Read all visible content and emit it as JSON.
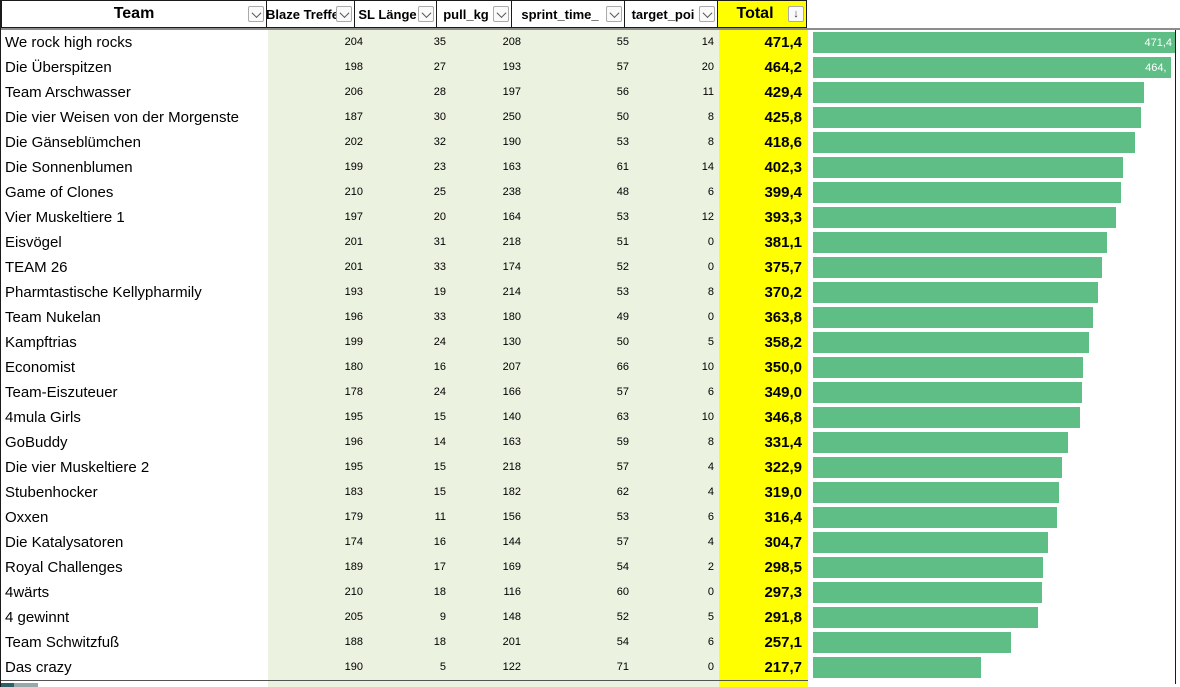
{
  "header": {
    "columns": [
      {
        "key": "team",
        "label": "Team",
        "icon": "chevron-down"
      },
      {
        "key": "blaze_treffer",
        "label": "Blaze Treffe",
        "icon": "chevron-down"
      },
      {
        "key": "sl_laenge",
        "label": "SL Länge",
        "icon": "chevron-down"
      },
      {
        "key": "pull_kg",
        "label": "pull_kg",
        "icon": "chevron-down"
      },
      {
        "key": "sprint_time",
        "label": "sprint_time_",
        "icon": "chevron-down"
      },
      {
        "key": "target_points",
        "label": "target_poi",
        "icon": "chevron-down"
      },
      {
        "key": "total",
        "label": "Total",
        "icon": "sort-descending"
      }
    ]
  },
  "rows": [
    {
      "team": "We rock high rocks",
      "blaze_treffer": 204,
      "sl_laenge": 35,
      "pull_kg": 208,
      "sprint_time": 55,
      "target_points": 14,
      "total": "471,4",
      "total_value": 471.4,
      "bar_label": "471,4"
    },
    {
      "team": "Die Überspitzen",
      "blaze_treffer": 198,
      "sl_laenge": 27,
      "pull_kg": 193,
      "sprint_time": 57,
      "target_points": 20,
      "total": "464,2",
      "total_value": 464.2,
      "bar_label": "464,"
    },
    {
      "team": "Team Arschwasser",
      "blaze_treffer": 206,
      "sl_laenge": 28,
      "pull_kg": 197,
      "sprint_time": 56,
      "target_points": 11,
      "total": "429,4",
      "total_value": 429.4,
      "bar_label": ""
    },
    {
      "team": "Die vier Weisen von der Morgenste",
      "blaze_treffer": 187,
      "sl_laenge": 30,
      "pull_kg": 250,
      "sprint_time": 50,
      "target_points": 8,
      "total": "425,8",
      "total_value": 425.8,
      "bar_label": ""
    },
    {
      "team": "Die Gänseblümchen",
      "blaze_treffer": 202,
      "sl_laenge": 32,
      "pull_kg": 190,
      "sprint_time": 53,
      "target_points": 8,
      "total": "418,6",
      "total_value": 418.6,
      "bar_label": ""
    },
    {
      "team": "Die Sonnenblumen",
      "blaze_treffer": 199,
      "sl_laenge": 23,
      "pull_kg": 163,
      "sprint_time": 61,
      "target_points": 14,
      "total": "402,3",
      "total_value": 402.3,
      "bar_label": ""
    },
    {
      "team": "Game of Clones",
      "blaze_treffer": 210,
      "sl_laenge": 25,
      "pull_kg": 238,
      "sprint_time": 48,
      "target_points": 6,
      "total": "399,4",
      "total_value": 399.4,
      "bar_label": ""
    },
    {
      "team": "Vier Muskeltiere 1",
      "blaze_treffer": 197,
      "sl_laenge": 20,
      "pull_kg": 164,
      "sprint_time": 53,
      "target_points": 12,
      "total": "393,3",
      "total_value": 393.3,
      "bar_label": ""
    },
    {
      "team": "Eisvögel",
      "blaze_treffer": 201,
      "sl_laenge": 31,
      "pull_kg": 218,
      "sprint_time": 51,
      "target_points": 0,
      "total": "381,1",
      "total_value": 381.1,
      "bar_label": ""
    },
    {
      "team": "TEAM 26",
      "blaze_treffer": 201,
      "sl_laenge": 33,
      "pull_kg": 174,
      "sprint_time": 52,
      "target_points": 0,
      "total": "375,7",
      "total_value": 375.7,
      "bar_label": ""
    },
    {
      "team": "Pharmtastische Kellypharmily",
      "blaze_treffer": 193,
      "sl_laenge": 19,
      "pull_kg": 214,
      "sprint_time": 53,
      "target_points": 8,
      "total": "370,2",
      "total_value": 370.2,
      "bar_label": ""
    },
    {
      "team": "Team Nukelan",
      "blaze_treffer": 196,
      "sl_laenge": 33,
      "pull_kg": 180,
      "sprint_time": 49,
      "target_points": 0,
      "total": "363,8",
      "total_value": 363.8,
      "bar_label": ""
    },
    {
      "team": "Kampftrias",
      "blaze_treffer": 199,
      "sl_laenge": 24,
      "pull_kg": 130,
      "sprint_time": 50,
      "target_points": 5,
      "total": "358,2",
      "total_value": 358.2,
      "bar_label": ""
    },
    {
      "team": "Economist",
      "blaze_treffer": 180,
      "sl_laenge": 16,
      "pull_kg": 207,
      "sprint_time": 66,
      "target_points": 10,
      "total": "350,0",
      "total_value": 350.0,
      "bar_label": ""
    },
    {
      "team": "Team-Eiszuteuer",
      "blaze_treffer": 178,
      "sl_laenge": 24,
      "pull_kg": 166,
      "sprint_time": 57,
      "target_points": 6,
      "total": "349,0",
      "total_value": 349.0,
      "bar_label": ""
    },
    {
      "team": "4mula Girls",
      "blaze_treffer": 195,
      "sl_laenge": 15,
      "pull_kg": 140,
      "sprint_time": 63,
      "target_points": 10,
      "total": "346,8",
      "total_value": 346.8,
      "bar_label": ""
    },
    {
      "team": "GoBuddy",
      "blaze_treffer": 196,
      "sl_laenge": 14,
      "pull_kg": 163,
      "sprint_time": 59,
      "target_points": 8,
      "total": "331,4",
      "total_value": 331.4,
      "bar_label": ""
    },
    {
      "team": "Die vier Muskeltiere 2",
      "blaze_treffer": 195,
      "sl_laenge": 15,
      "pull_kg": 218,
      "sprint_time": 57,
      "target_points": 4,
      "total": "322,9",
      "total_value": 322.9,
      "bar_label": ""
    },
    {
      "team": "Stubenhocker",
      "blaze_treffer": 183,
      "sl_laenge": 15,
      "pull_kg": 182,
      "sprint_time": 62,
      "target_points": 4,
      "total": "319,0",
      "total_value": 319.0,
      "bar_label": ""
    },
    {
      "team": "Oxxen",
      "blaze_treffer": 179,
      "sl_laenge": 11,
      "pull_kg": 156,
      "sprint_time": 53,
      "target_points": 6,
      "total": "316,4",
      "total_value": 316.4,
      "bar_label": ""
    },
    {
      "team": "Die Katalysatoren",
      "blaze_treffer": 174,
      "sl_laenge": 16,
      "pull_kg": 144,
      "sprint_time": 57,
      "target_points": 4,
      "total": "304,7",
      "total_value": 304.7,
      "bar_label": ""
    },
    {
      "team": "Royal Challenges",
      "blaze_treffer": 189,
      "sl_laenge": 17,
      "pull_kg": 169,
      "sprint_time": 54,
      "target_points": 2,
      "total": "298,5",
      "total_value": 298.5,
      "bar_label": ""
    },
    {
      "team": "4wärts",
      "blaze_treffer": 210,
      "sl_laenge": 18,
      "pull_kg": 116,
      "sprint_time": 60,
      "target_points": 0,
      "total": "297,3",
      "total_value": 297.3,
      "bar_label": ""
    },
    {
      "team": "4 gewinnt",
      "blaze_treffer": 205,
      "sl_laenge": 9,
      "pull_kg": 148,
      "sprint_time": 52,
      "target_points": 5,
      "total": "291,8",
      "total_value": 291.8,
      "bar_label": ""
    },
    {
      "team": "Team Schwitzfuß",
      "blaze_treffer": 188,
      "sl_laenge": 18,
      "pull_kg": 201,
      "sprint_time": 54,
      "target_points": 6,
      "total": "257,1",
      "total_value": 257.1,
      "bar_label": ""
    },
    {
      "team": "Das crazy",
      "blaze_treffer": 190,
      "sl_laenge": 5,
      "pull_kg": 122,
      "sprint_time": 71,
      "target_points": 0,
      "total": "217,7",
      "total_value": 217.7,
      "bar_label": ""
    }
  ],
  "colors": {
    "total_column_bg": "#ffff00",
    "numeric_columns_bg": "#ecf2e0",
    "bar_fill": "#5fbe86",
    "bar_label_text": "#ffffff"
  },
  "chart_data": {
    "type": "bar",
    "orientation": "horizontal",
    "categories": [
      "We rock high rocks",
      "Die Überspitzen",
      "Team Arschwasser",
      "Die vier Weisen von der Morgenste",
      "Die Gänseblümchen",
      "Die Sonnenblumen",
      "Game of Clones",
      "Vier Muskeltiere 1",
      "Eisvögel",
      "TEAM 26",
      "Pharmtastische Kellypharmily",
      "Team Nukelan",
      "Kampftrias",
      "Economist",
      "Team-Eiszuteuer",
      "4mula Girls",
      "GoBuddy",
      "Die vier Muskeltiere 2",
      "Stubenhocker",
      "Oxxen",
      "Die Katalysatoren",
      "Royal Challenges",
      "4wärts",
      "4 gewinnt",
      "Team Schwitzfuß",
      "Das crazy"
    ],
    "values": [
      471.4,
      464.2,
      429.4,
      425.8,
      418.6,
      402.3,
      399.4,
      393.3,
      381.1,
      375.7,
      370.2,
      363.8,
      358.2,
      350.0,
      349.0,
      346.8,
      331.4,
      322.9,
      319.0,
      316.4,
      304.7,
      298.5,
      297.3,
      291.8,
      257.1,
      217.7
    ],
    "data_labels_visible": [
      "471,4",
      "464,"
    ],
    "xlim": [
      0,
      471.4
    ],
    "title": "",
    "xlabel": "",
    "ylabel": "",
    "grid": false,
    "legend": false
  }
}
